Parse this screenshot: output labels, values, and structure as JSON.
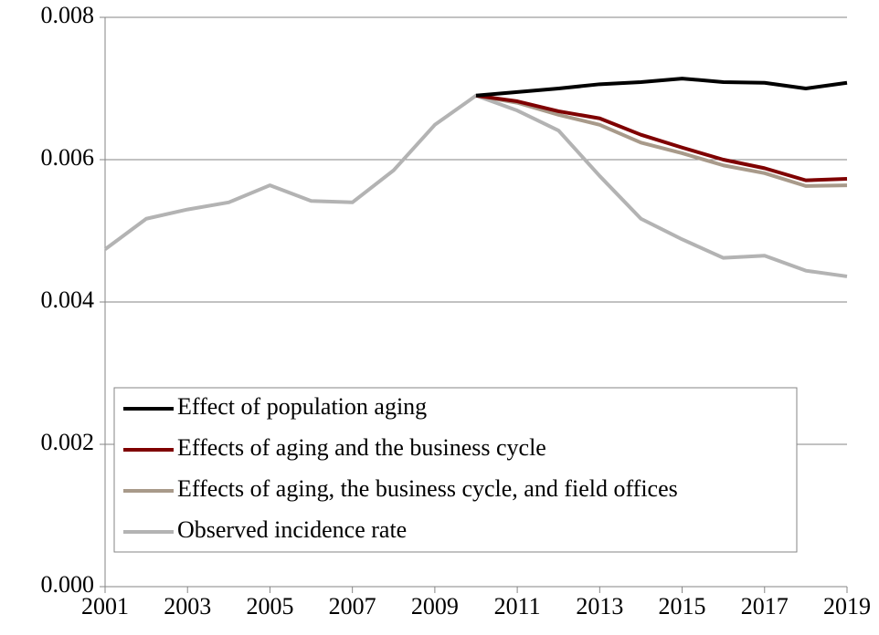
{
  "chart_data": {
    "type": "line",
    "x": [
      2001,
      2002,
      2003,
      2004,
      2005,
      2006,
      2007,
      2008,
      2009,
      2010,
      2011,
      2012,
      2013,
      2014,
      2015,
      2016,
      2017,
      2018,
      2019
    ],
    "series": [
      {
        "name": "Effect of population aging",
        "color": "#000000",
        "values": [
          null,
          null,
          null,
          null,
          null,
          null,
          null,
          null,
          null,
          0.0069,
          0.00695,
          0.007,
          0.00706,
          0.00709,
          0.00714,
          0.00709,
          0.00708,
          0.007,
          0.00708
        ]
      },
      {
        "name": "Effects of aging and the business cycle",
        "color": "#7f0000",
        "values": [
          null,
          null,
          null,
          null,
          null,
          null,
          null,
          null,
          null,
          0.0069,
          0.00682,
          0.00668,
          0.00658,
          0.00635,
          0.00617,
          0.006,
          0.00588,
          0.00571,
          0.00573
        ]
      },
      {
        "name": "Effects of aging, the business cycle, and field offices",
        "color": "#a89a8a",
        "values": [
          null,
          null,
          null,
          null,
          null,
          null,
          null,
          null,
          null,
          0.0069,
          0.0068,
          0.00663,
          0.00649,
          0.00624,
          0.00609,
          0.00592,
          0.00581,
          0.00563,
          0.00564
        ]
      },
      {
        "name": "Observed incidence rate",
        "color": "#b3b3b3",
        "values": [
          0.00474,
          0.00517,
          0.0053,
          0.0054,
          0.00564,
          0.00542,
          0.0054,
          0.00585,
          0.00649,
          0.0069,
          0.00669,
          0.00641,
          0.00577,
          0.00517,
          0.00488,
          0.00462,
          0.00465,
          0.00444,
          0.00436
        ]
      }
    ],
    "xlim": [
      2001,
      2019
    ],
    "xticks": [
      2001,
      2003,
      2005,
      2007,
      2009,
      2011,
      2013,
      2015,
      2017,
      2019
    ],
    "ylim": [
      0,
      0.008
    ],
    "yticks": [
      {
        "value": 0,
        "label": "0.000"
      },
      0.002,
      0.004,
      0.006,
      0.008
    ],
    "grid": true,
    "legend": "lower left"
  }
}
